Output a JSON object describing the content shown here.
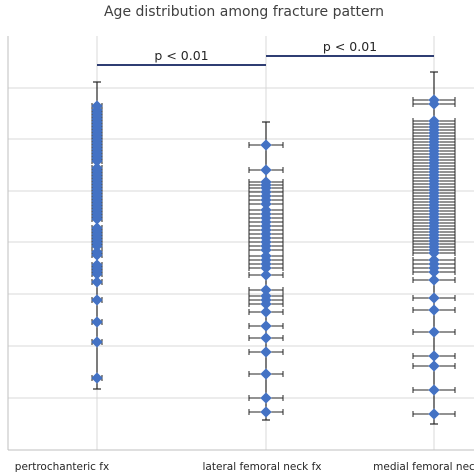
{
  "chart_data": {
    "type": "scatter",
    "title": "Age distribution among fracture pattern",
    "categories": [
      "pertrochanteric fx",
      "lateral femoral neck fx",
      "medial femoral nec"
    ],
    "y_axis": {
      "tick_labels_visible": false,
      "gridlines": 8
    },
    "error_bars": true,
    "marker_color": "#4472c4",
    "comparisons": [
      {
        "from": "pertrochanteric fx",
        "to": "lateral femoral neck fx",
        "label": "p < 0.01"
      },
      {
        "from": "lateral femoral neck fx",
        "to": "medial femoral nec",
        "label": "p < 0.01"
      }
    ],
    "series": [
      {
        "category": "pertrochanteric fx",
        "points": [
          106,
          110,
          113,
          116,
          119,
          122,
          125,
          128,
          131,
          134,
          137,
          140,
          143,
          146,
          149,
          152,
          155,
          158,
          161,
          168,
          171,
          174,
          177,
          180,
          183,
          186,
          189,
          192,
          195,
          198,
          201,
          204,
          207,
          210,
          213,
          216,
          219,
          228,
          231,
          234,
          237,
          240,
          243,
          246,
          252,
          255,
          265,
          268,
          271,
          274,
          282,
          300,
          322,
          342,
          378
        ],
        "error_bar_top": 82,
        "error_bar_bottom": 389
      },
      {
        "category": "lateral femoral neck fx",
        "points": [
          145,
          170,
          182,
          185,
          188,
          192,
          196,
          200,
          204,
          210,
          214,
          218,
          222,
          226,
          230,
          234,
          238,
          242,
          246,
          250,
          256,
          260,
          264,
          268,
          275,
          290,
          296,
          300,
          304,
          312,
          326,
          338,
          352,
          374,
          398,
          412
        ],
        "error_bar_top": 122,
        "error_bar_bottom": 420
      },
      {
        "category": "medial femoral nec",
        "points": [
          100,
          104,
          121,
          124,
          127,
          130,
          133,
          136,
          139,
          142,
          145,
          148,
          151,
          154,
          157,
          160,
          163,
          166,
          169,
          172,
          175,
          178,
          181,
          184,
          187,
          190,
          193,
          196,
          199,
          202,
          205,
          208,
          211,
          214,
          217,
          220,
          223,
          226,
          229,
          232,
          235,
          238,
          241,
          244,
          247,
          250,
          253,
          260,
          264,
          268,
          272,
          280,
          298,
          310,
          332,
          356,
          366,
          390,
          414
        ],
        "error_bar_top": 72,
        "error_bar_bottom": 424
      }
    ]
  }
}
